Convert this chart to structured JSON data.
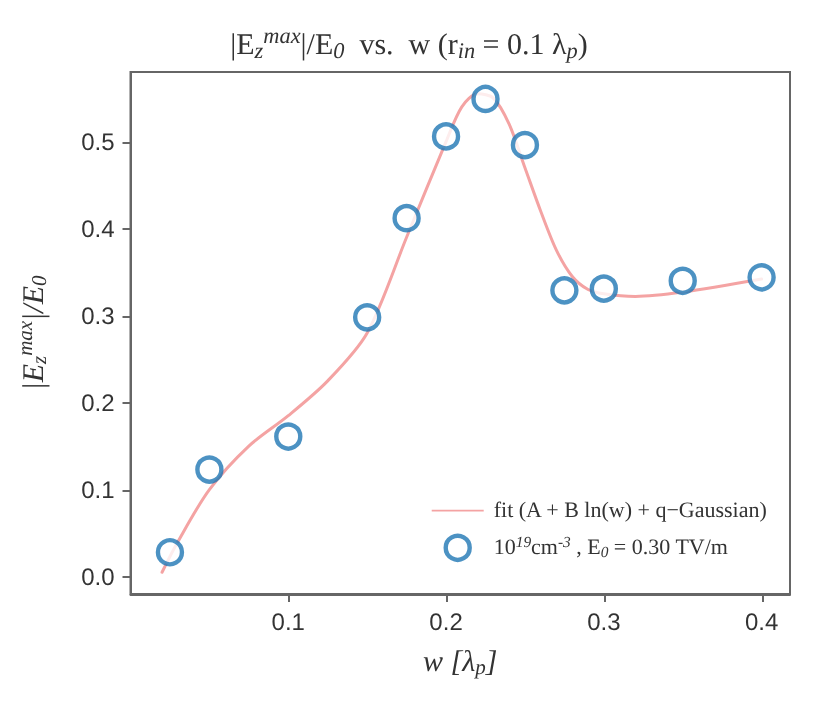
{
  "chart_data": {
    "type": "scatter",
    "title": "|E$_{z}$$^{max}$|/E$_{0}$  vs.  w (r$_{in}$ = 0.1 λ$_{p}$)",
    "xlabel": "w [λ$_{p}$]",
    "ylabel": "|E$_{z}$$^{max}$|/E$_{0}$",
    "xlim": [
      0,
      0.418
    ],
    "ylim": [
      -0.02,
      0.58
    ],
    "xticks": [
      0.1,
      0.2,
      0.3,
      0.4
    ],
    "yticks": [
      {
        "value": 0,
        "label": "0.0"
      },
      0.1,
      0.2,
      0.3,
      0.4,
      0.5
    ],
    "grid": false,
    "legend": "bottom right",
    "series": [
      {
        "type": "line",
        "name": "fit (A + B ln(w) + q−Gaussian)",
        "color": "#f4a3a3",
        "marker": "none",
        "line_style": "solid",
        "x": [
          0.02,
          0.03,
          0.05,
          0.075,
          0.1,
          0.125,
          0.15,
          0.175,
          0.2,
          0.21,
          0.22,
          0.23,
          0.24,
          0.25,
          0.26,
          0.27,
          0.28,
          0.29,
          0.3,
          0.32,
          0.35,
          0.4
        ],
        "values": [
          0.005,
          0.04,
          0.1,
          0.15,
          0.185,
          0.225,
          0.28,
          0.39,
          0.5,
          0.54,
          0.555,
          0.55,
          0.52,
          0.47,
          0.42,
          0.375,
          0.345,
          0.33,
          0.325,
          0.322,
          0.327,
          0.342
        ]
      },
      {
        "name": "10$^{19}$cm$^{-3}$ , E$_{0}$ = 0.30 TV/m",
        "color": "#1f77b4",
        "marker": "circle",
        "x": [
          0.025,
          0.05,
          0.1,
          0.15,
          0.175,
          0.2,
          0.225,
          0.25,
          0.275,
          0.3,
          0.35,
          0.4
        ],
        "values": [
          0.028,
          0.123,
          0.161,
          0.298,
          0.412,
          0.506,
          0.549,
          0.496,
          0.329,
          0.331,
          0.34,
          0.344
        ]
      }
    ]
  }
}
